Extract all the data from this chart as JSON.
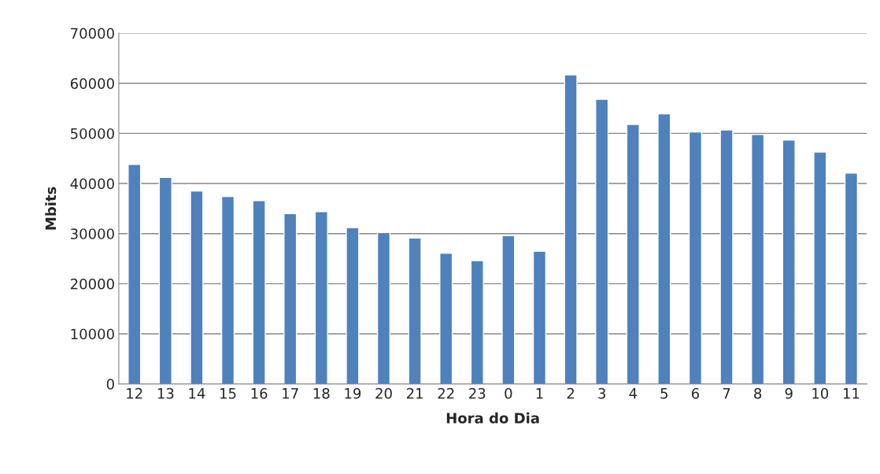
{
  "chart_data": {
    "type": "bar",
    "xlabel": "Hora do Dia",
    "ylabel": "Mbits",
    "categories": [
      "12",
      "13",
      "14",
      "15",
      "16",
      "17",
      "18",
      "19",
      "20",
      "21",
      "22",
      "23",
      "0",
      "1",
      "2",
      "3",
      "4",
      "5",
      "6",
      "7",
      "8",
      "9",
      "10",
      "11"
    ],
    "values": [
      43800,
      41200,
      38500,
      37400,
      36600,
      34000,
      34400,
      31200,
      30200,
      29100,
      26100,
      24600,
      29600,
      26500,
      61700,
      56800,
      51800,
      53900,
      50300,
      50700,
      49800,
      48700,
      46300,
      42100
    ],
    "color": "#4f81bd",
    "ylim": [
      0,
      70000
    ],
    "yticks": [
      0,
      10000,
      20000,
      30000,
      40000,
      50000,
      60000,
      70000
    ],
    "grid": "y",
    "legend": false
  }
}
